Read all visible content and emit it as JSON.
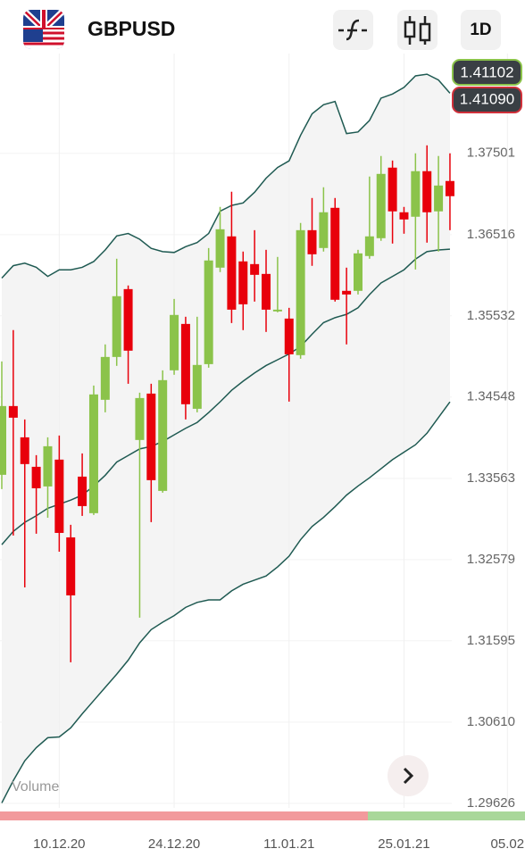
{
  "header": {
    "symbol": "GBPUSD",
    "timeframe": "1D"
  },
  "price_badges": [
    "1.41102",
    "1.41090"
  ],
  "chart_data": {
    "type": "candlestick",
    "indicator_label": "Volume",
    "up_color": "#8bc34a",
    "down_color": "#e8000b",
    "band_color": "#1f5a52",
    "band_fill": "#f4f4f4",
    "candles": {
      "open": [
        1.33606,
        1.34439,
        1.3406,
        1.33703,
        1.33465,
        1.3379,
        1.32848,
        1.33584,
        1.33141,
        1.34515,
        1.35034,
        1.35856,
        1.34028,
        1.3459,
        1.33411,
        1.34872,
        1.35434,
        1.34406,
        1.34947,
        1.36116,
        1.36495,
        1.36192,
        1.36159,
        1.3604,
        1.35586,
        1.35499,
        1.35056,
        1.3657,
        1.36354,
        1.36841,
        1.35835,
        1.35835,
        1.36257,
        1.36473,
        1.37328,
        1.36787,
        1.36733,
        1.37285,
        1.36798,
        1.37166
      ],
      "close": [
        1.34439,
        1.34298,
        1.33736,
        1.33443,
        1.33952,
        1.32902,
        1.32145,
        1.33227,
        1.3458,
        1.35034,
        1.3577,
        1.3511,
        1.34536,
        1.33541,
        1.34753,
        1.35543,
        1.34461,
        1.34937,
        1.36203,
        1.36581,
        1.35607,
        1.35672,
        1.36029,
        1.35607,
        1.35607,
        1.35066,
        1.3657,
        1.36278,
        1.36787,
        1.35727,
        1.35791,
        1.36289,
        1.36495,
        1.37252,
        1.36798,
        1.367,
        1.37285,
        1.36787,
        1.37111,
        1.36982
      ],
      "high": [
        1.3498,
        1.35359,
        1.34277,
        1.33844,
        1.3406,
        1.34082,
        1.33,
        1.33865,
        1.34688,
        1.35186,
        1.36224,
        1.359,
        1.34601,
        1.34709,
        1.34872,
        1.35737,
        1.35521,
        1.35521,
        1.36354,
        1.36852,
        1.37036,
        1.36311,
        1.3657,
        1.36332,
        1.36246,
        1.35629,
        1.36657,
        1.3696,
        1.3709,
        1.3696,
        1.36116,
        1.36332,
        1.3722,
        1.37469,
        1.37414,
        1.36852,
        1.37501,
        1.37598,
        1.37469,
        1.37501
      ],
      "low": [
        1.33433,
        1.3287,
        1.32242,
        1.32892,
        1.33086,
        1.32675,
        1.31334,
        1.33108,
        1.33119,
        1.34363,
        1.34926,
        1.34709,
        1.31875,
        1.33032,
        1.3339,
        1.34818,
        1.34277,
        1.34363,
        1.34904,
        1.36062,
        1.35445,
        1.35359,
        1.35705,
        1.35337,
        1.35575,
        1.34493,
        1.35012,
        1.36138,
        1.36311,
        1.35705,
        1.35186,
        1.35791,
        1.36224,
        1.36441,
        1.36408,
        1.36527,
        1.36094,
        1.36419,
        1.36311,
        1.3657
      ]
    },
    "bands": {
      "upper": [
        1.3599,
        1.3614,
        1.3617,
        1.3612,
        1.3601,
        1.3609,
        1.3609,
        1.3612,
        1.3619,
        1.3633,
        1.365,
        1.3653,
        1.3646,
        1.3635,
        1.3631,
        1.363,
        1.3637,
        1.3642,
        1.3653,
        1.368,
        1.3687,
        1.369,
        1.3703,
        1.372,
        1.3733,
        1.3741,
        1.3772,
        1.3798,
        1.3809,
        1.3813,
        1.3774,
        1.3776,
        1.379,
        1.3817,
        1.3822,
        1.383,
        1.3844,
        1.3846,
        1.3839,
        1.3823
      ],
      "middle": [
        1.3276,
        1.3292,
        1.3303,
        1.3311,
        1.332,
        1.3325,
        1.333,
        1.3336,
        1.3347,
        1.336,
        1.3376,
        1.3384,
        1.3392,
        1.3395,
        1.3401,
        1.3409,
        1.3417,
        1.3424,
        1.3436,
        1.3449,
        1.3463,
        1.3474,
        1.3484,
        1.3493,
        1.35,
        1.3507,
        1.3516,
        1.3531,
        1.3545,
        1.3551,
        1.3555,
        1.3563,
        1.3579,
        1.3593,
        1.3601,
        1.3609,
        1.3622,
        1.3631,
        1.3633,
        1.3634
      ],
      "lower": [
        1.2963,
        1.299,
        1.3014,
        1.303,
        1.3042,
        1.3043,
        1.3054,
        1.3071,
        1.3087,
        1.3103,
        1.3119,
        1.3136,
        1.3157,
        1.3173,
        1.3182,
        1.319,
        1.32,
        1.3206,
        1.3209,
        1.3209,
        1.322,
        1.3228,
        1.3233,
        1.3238,
        1.3249,
        1.3262,
        1.3282,
        1.3298,
        1.3309,
        1.3322,
        1.3336,
        1.3347,
        1.3357,
        1.3368,
        1.3379,
        1.3388,
        1.3397,
        1.3411,
        1.343,
        1.3449
      ]
    },
    "xlim": [
      -0.155,
      45.53
    ],
    "xticks": [
      {
        "value": 5,
        "label": "10.12.20"
      },
      {
        "value": 15,
        "label": "24.12.20"
      },
      {
        "value": 25,
        "label": "11.01.21"
      },
      {
        "value": 35,
        "label": "25.01.21"
      },
      {
        "value": 44,
        "label": "05.02"
      }
    ],
    "ylim": [
      1.2957,
      1.3871
    ],
    "yticks": [
      1.37501,
      1.36516,
      1.35532,
      1.34548,
      1.33563,
      1.32579,
      1.31595,
      {
        "value": 1.3061,
        "label": "1.30610"
      },
      1.29626
    ],
    "grid": true
  }
}
